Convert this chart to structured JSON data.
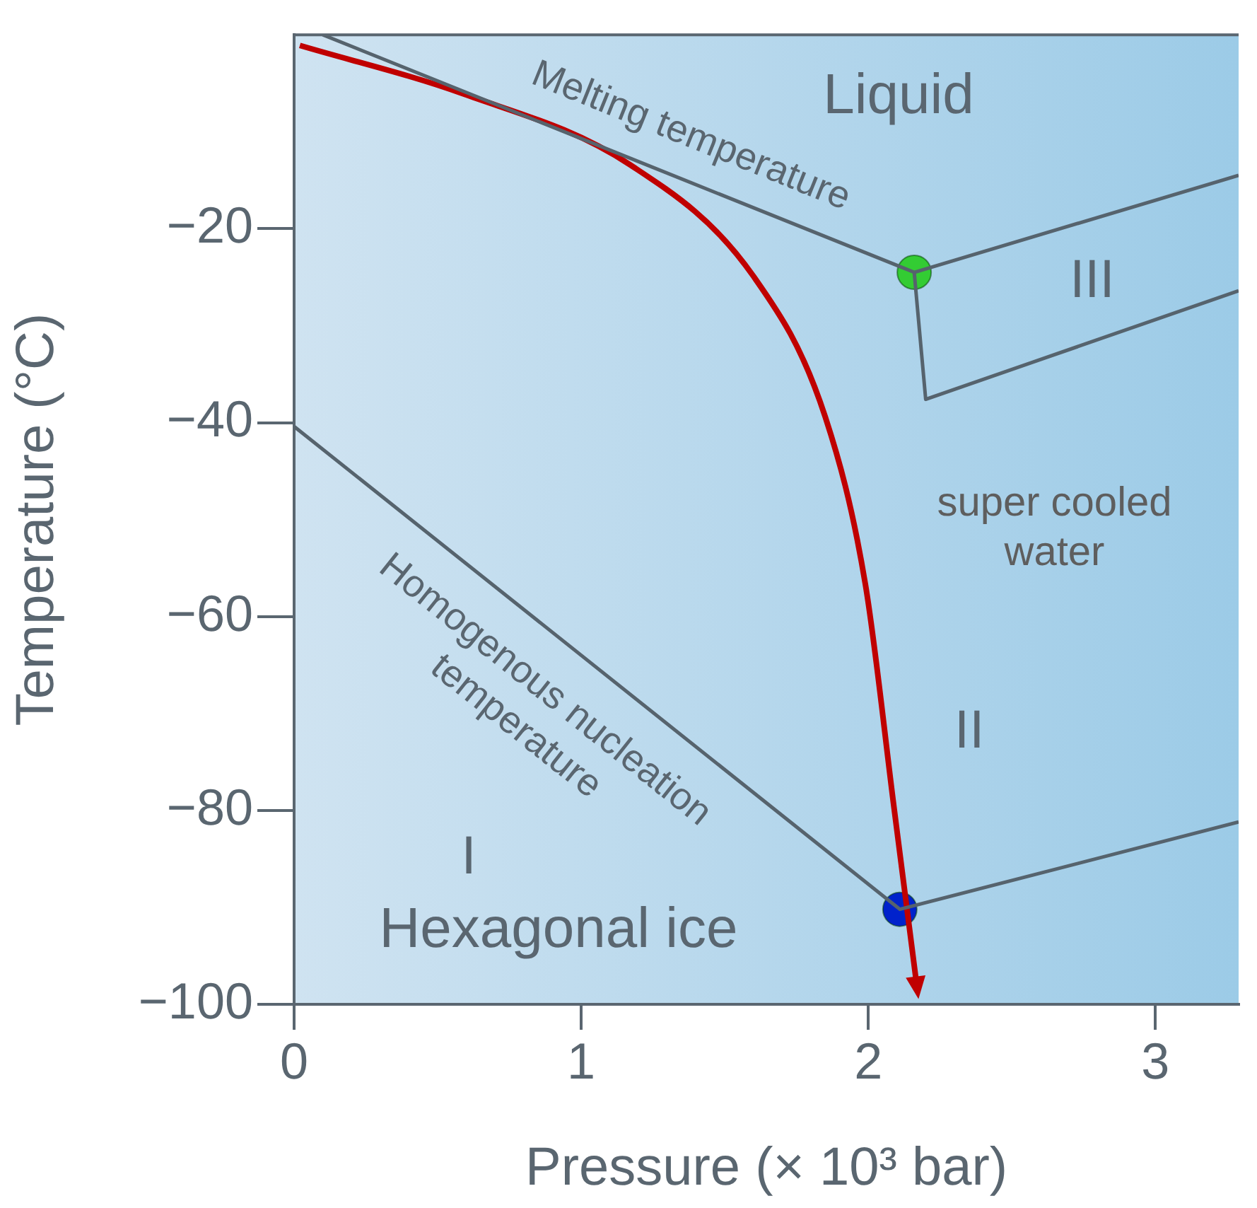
{
  "chart_data": {
    "type": "line",
    "xlabel": "Pressure (× 10³ bar)",
    "ylabel": "Temperature (°C)",
    "xlim": [
      0,
      3.29
    ],
    "ylim": [
      -100,
      0
    ],
    "xticks": [
      0,
      1,
      2,
      3
    ],
    "yticks": [
      -100,
      -80,
      -60,
      -40,
      -20
    ],
    "grid": false,
    "legend": false,
    "marker": "none",
    "series": [
      {
        "color": "#56636d",
        "x": [
          0.1,
          2.16,
          3.29
        ],
        "values": [
          0,
          -24.5,
          -14.5
        ]
      },
      {
        "color": "#56636d",
        "x": [
          2.16,
          2.2,
          3.29
        ],
        "values": [
          -24.5,
          -37.6,
          -26.4
        ]
      },
      {
        "color": "#56636d",
        "x": [
          0,
          2.11,
          3.29
        ],
        "values": [
          -40.4,
          -90.2,
          -81.2
        ]
      },
      {
        "color": "#c00000",
        "x": [
          0.02,
          0.59,
          1.17,
          1.6,
          1.85,
          1.99,
          2.09,
          2.17
        ],
        "values": [
          -1.1,
          -6.1,
          -13.4,
          -24.9,
          -39.4,
          -56.7,
          -79.8,
          -98.3
        ]
      },
      {
        "type": "scatter",
        "color": "#33cc33",
        "marker": "circle",
        "x": [
          2.16
        ],
        "values": [
          -24.5
        ]
      },
      {
        "type": "scatter",
        "color": "#0022cc",
        "marker": "circle",
        "x": [
          2.11
        ],
        "values": [
          -90.2
        ]
      }
    ],
    "annotations": [
      "Liquid",
      "Melting temperature",
      "III",
      "super cooled water",
      "II",
      "Homogenous nucleation temperature",
      "I",
      "Hexagonal ice"
    ]
  }
}
